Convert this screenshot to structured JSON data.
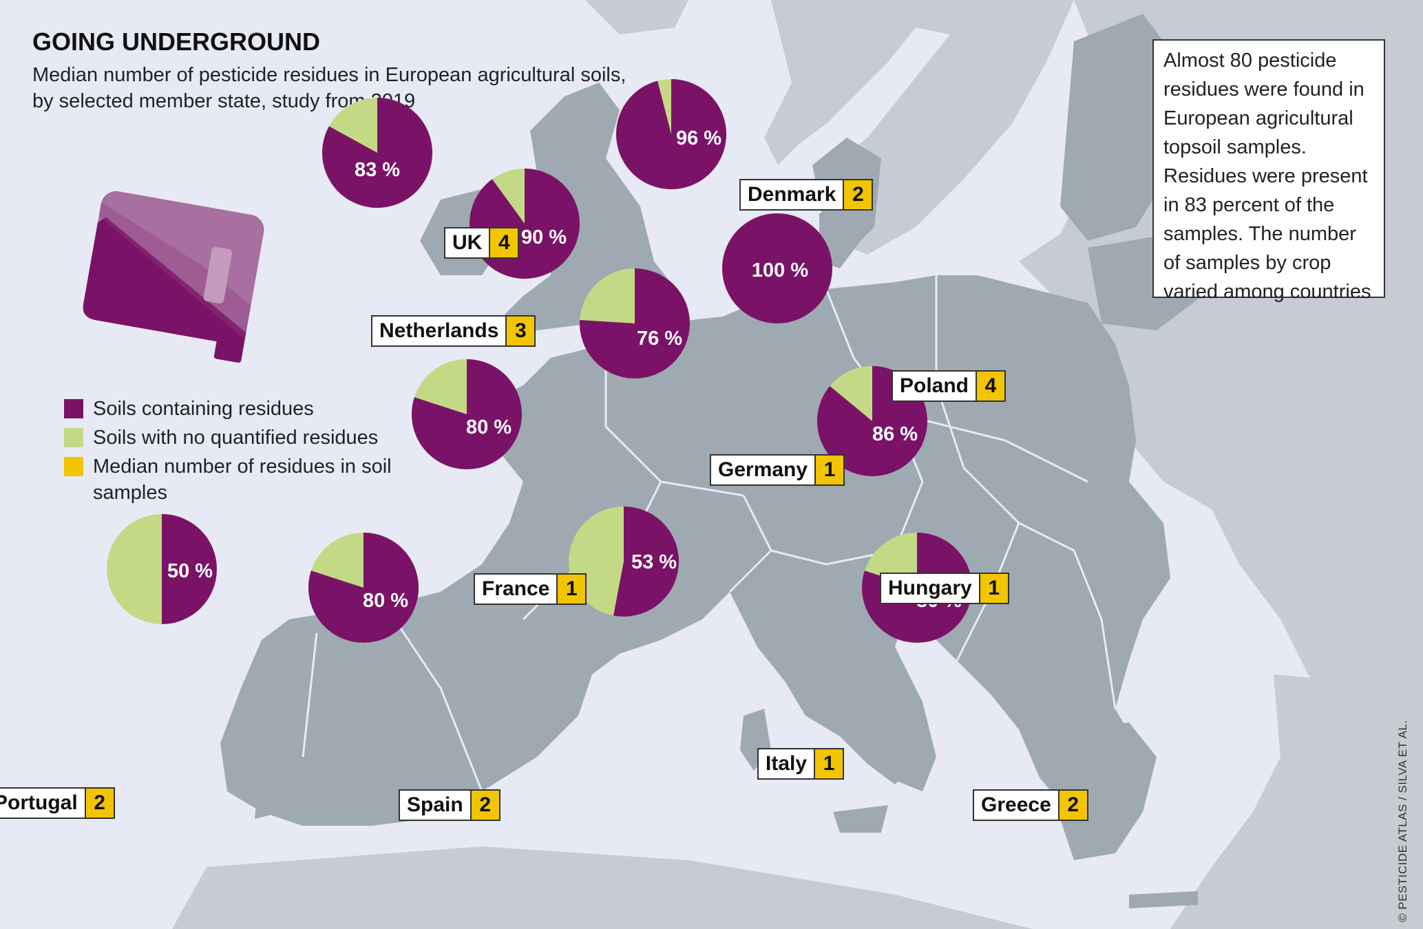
{
  "title": "GOING UNDERGROUND",
  "subtitle": "Median number of pesticide residues in European agricultural soils, by selected member state, study from 2019",
  "info_text": "Almost 80 pesticide residues were found in European agricultural topsoil samples. Residues were present in 83 percent of the samples. The number of samples by crop varied among countries",
  "legend": {
    "residues": "Soils containing residues",
    "no_residues": "Soils with no quantified residues",
    "median": "Median number of residues in soil samples"
  },
  "credit": "© PESTICIDE ATLAS / SILVA ET AL.",
  "colors": {
    "residues": "#7a1367",
    "no_residues": "#c4d986",
    "median": "#f2c500",
    "land": "#9fa9b2",
    "land_light": "#c7ccd3",
    "sea": "#e7eaf4"
  },
  "icons": {
    "canister": "jerrycan-icon"
  },
  "chart_data": {
    "type": "pie",
    "title": "GOING UNDERGROUND",
    "series_labels": [
      "Soils containing residues",
      "Soils with no quantified residues"
    ],
    "countries": [
      {
        "name": "UK",
        "percent_residues": 83,
        "pct_label": "83 %",
        "median_residues": 4
      },
      {
        "name": "Netherlands",
        "percent_residues": 90,
        "pct_label": "90 %",
        "median_residues": 3
      },
      {
        "name": "Denmark",
        "percent_residues": 96,
        "pct_label": "96 %",
        "median_residues": 2
      },
      {
        "name": "Poland",
        "percent_residues": 100,
        "pct_label": "100 %",
        "median_residues": 4
      },
      {
        "name": "Germany",
        "percent_residues": 76,
        "pct_label": "76 %",
        "median_residues": 1
      },
      {
        "name": "France",
        "percent_residues": 80,
        "pct_label": "80 %",
        "median_residues": 1
      },
      {
        "name": "Hungary",
        "percent_residues": 86,
        "pct_label": "86 %",
        "median_residues": 1
      },
      {
        "name": "Portugal",
        "percent_residues": 50,
        "pct_label": "50 %",
        "median_residues": 2
      },
      {
        "name": "Spain",
        "percent_residues": 80,
        "pct_label": "80 %",
        "median_residues": 2
      },
      {
        "name": "Italy",
        "percent_residues": 53,
        "pct_label": "53 %",
        "median_residues": 1
      },
      {
        "name": "Greece",
        "percent_residues": 80,
        "pct_label": "80 %",
        "median_residues": 2
      }
    ]
  }
}
